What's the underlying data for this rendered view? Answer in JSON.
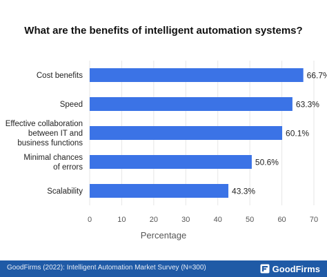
{
  "colors": {
    "bar": "#3b73e6",
    "footer": "#1f5aa6",
    "grid": "#e6e6e6"
  },
  "chart_data": {
    "type": "bar",
    "orientation": "horizontal",
    "title": "What are the benefits of intelligent automation systems?",
    "xlabel": "Percentage",
    "ylabel": "",
    "xlim": [
      0,
      70
    ],
    "xticks": [
      "0",
      "10",
      "20",
      "30",
      "40",
      "50",
      "60",
      "70"
    ],
    "grid": "vertical",
    "categories": [
      [
        "Cost benefits"
      ],
      [
        "Speed"
      ],
      [
        "Effective collaboration",
        "between IT and",
        "business functions"
      ],
      [
        "Minimal chances",
        "of errors"
      ],
      [
        "Scalability"
      ]
    ],
    "values": [
      66.7,
      63.3,
      60.1,
      50.6,
      43.3
    ],
    "value_labels": [
      "66.7%",
      "63.3%",
      "60.1%",
      "50.6%",
      "43.3%"
    ]
  },
  "footer": {
    "source": "GoodFirms (2022): Intelligent Automation Market Survey (N=300)",
    "brand": "GoodFirms",
    "brand_icon": "goodfirms-logo-icon"
  }
}
